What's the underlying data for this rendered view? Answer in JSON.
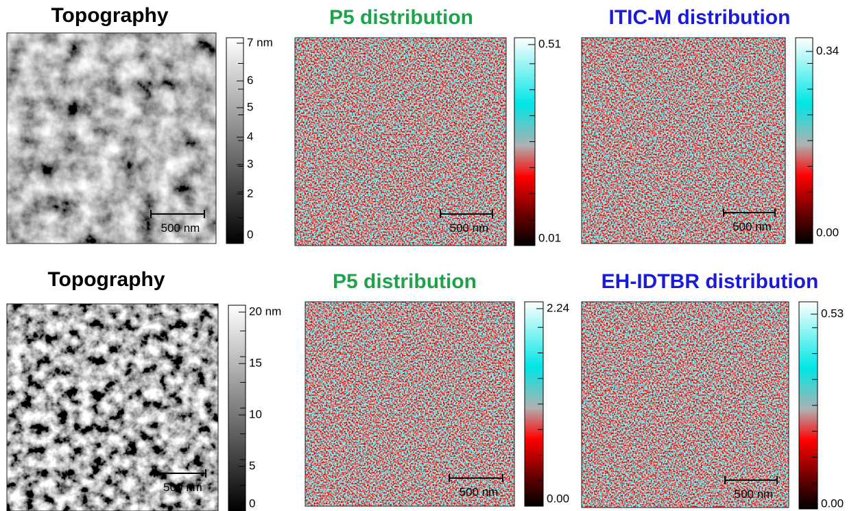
{
  "panels": [
    {
      "title": "Topography",
      "colorbar_labels": [
        "7 nm",
        "6",
        "5",
        "4",
        "3",
        "2",
        "0"
      ],
      "scale_bar": "500 nm"
    },
    {
      "title": "P5  distribution",
      "colorbar_labels": [
        "0.51",
        "0.01"
      ],
      "scale_bar": "500 nm"
    },
    {
      "title": "ITIC-M distribution",
      "colorbar_labels": [
        "0.34",
        "0.00"
      ],
      "scale_bar": "500 nm"
    },
    {
      "title": "Topography",
      "colorbar_labels": [
        "20 nm",
        "15",
        "10",
        "5",
        "0"
      ],
      "scale_bar": "500 nm"
    },
    {
      "title": "P5  distribution",
      "colorbar_labels": [
        "2.24",
        "0.00"
      ],
      "scale_bar": "500 nm"
    },
    {
      "title": "EH-IDTBR distribution",
      "colorbar_labels": [
        "0.53",
        "0.00"
      ],
      "scale_bar": "500 nm"
    }
  ]
}
